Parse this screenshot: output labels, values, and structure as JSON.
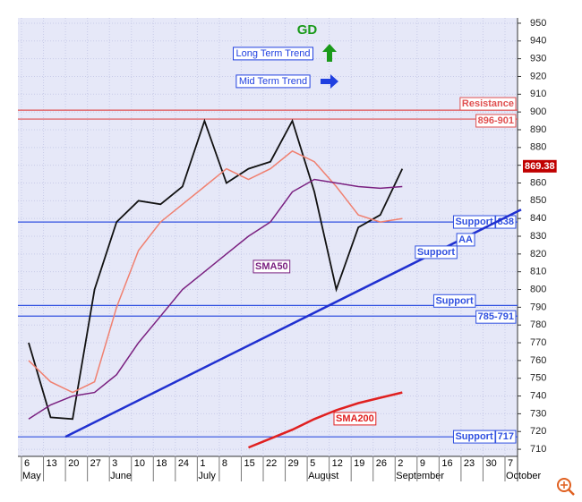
{
  "chart_data": {
    "type": "line",
    "title": "GD",
    "trend_notes": [
      {
        "label": "Long Term Trend",
        "arrow": "up",
        "color": "#1a9a1a"
      },
      {
        "label": "Mid Term Trend",
        "arrow": "right",
        "color": "#2040e0"
      }
    ],
    "categories": [
      "6",
      "13",
      "20",
      "27",
      "3",
      "10",
      "18",
      "24",
      "1",
      "8",
      "15",
      "22",
      "29",
      "5",
      "12",
      "19",
      "26",
      "2",
      "9",
      "16",
      "23",
      "30",
      "7"
    ],
    "month_labels": [
      "May",
      null,
      null,
      null,
      "June",
      null,
      null,
      null,
      "July",
      null,
      null,
      null,
      null,
      "August",
      null,
      null,
      null,
      "September",
      null,
      null,
      null,
      null,
      "October"
    ],
    "series": [
      {
        "color": "#111111",
        "values": [
          770,
          728,
          727,
          800,
          838,
          850,
          848,
          858,
          895,
          860,
          868,
          872,
          895,
          855,
          800,
          835,
          842,
          868,
          null,
          null,
          null,
          null,
          null
        ]
      },
      {
        "color": "#f08070",
        "values": [
          760,
          748,
          742,
          748,
          790,
          822,
          838,
          848,
          858,
          868,
          862,
          868,
          878,
          872,
          858,
          842,
          838,
          840,
          null,
          null,
          null,
          null,
          null
        ]
      },
      {
        "name": "SMA50",
        "color": "#7a2080",
        "values": [
          727,
          735,
          740,
          742,
          752,
          770,
          785,
          800,
          810,
          820,
          830,
          838,
          855,
          862,
          860,
          858,
          857,
          858,
          null,
          null,
          null,
          null,
          null
        ]
      },
      {
        "name": "SMA200",
        "color": "#e02020",
        "values": [
          null,
          null,
          null,
          null,
          null,
          null,
          null,
          null,
          null,
          null,
          711,
          716,
          721,
          727,
          732,
          736,
          739,
          742,
          null,
          null,
          null,
          null,
          null
        ]
      }
    ],
    "last_price": 869.38,
    "resistance": {
      "label": "Resistance",
      "range_label": "896-901",
      "values": [
        896,
        901
      ],
      "color": "#e05050"
    },
    "supports": [
      {
        "label": "Support",
        "value_label": "838",
        "values": [
          838
        ]
      },
      {
        "label": "Support",
        "value_label": "785-791",
        "values": [
          785,
          791
        ]
      },
      {
        "label": "Support",
        "value_label": "717",
        "values": [
          717
        ]
      }
    ],
    "support_color": "#3050e0",
    "trendline": {
      "label": "Support",
      "note": "AA",
      "from": {
        "x": "20",
        "y": 717
      },
      "to": {
        "x": "7",
        "y": 845
      },
      "color": "#2030d0"
    },
    "ylim": [
      706,
      953
    ],
    "yticks": [
      710,
      720,
      730,
      740,
      750,
      760,
      770,
      780,
      790,
      800,
      810,
      820,
      830,
      840,
      850,
      860,
      870,
      880,
      890,
      900,
      910,
      920,
      930,
      940,
      950
    ],
    "grid": true
  }
}
